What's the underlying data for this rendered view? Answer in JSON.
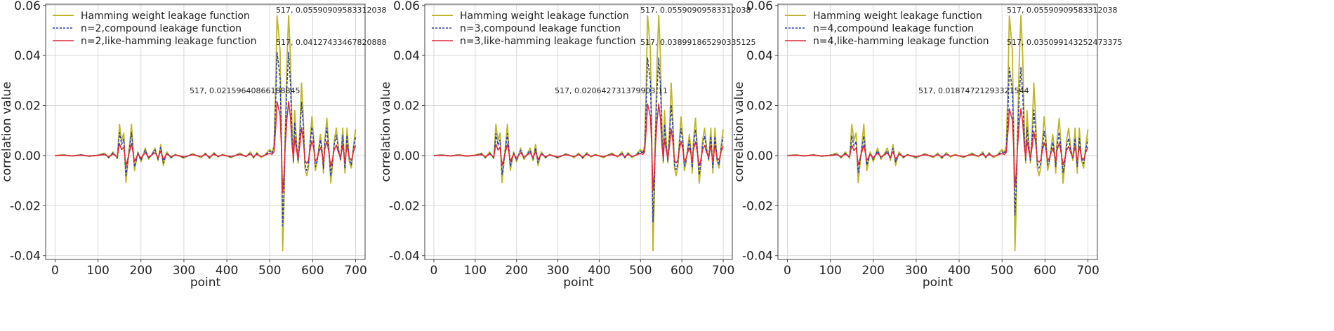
{
  "chart_data": [
    {
      "type": "line",
      "xlabel": "point",
      "ylabel": "correlation value",
      "xlim": [
        -22,
        722
      ],
      "ylim": [
        -0.0415,
        0.0605
      ],
      "xticks": [
        0,
        100,
        200,
        300,
        400,
        500,
        600,
        700
      ],
      "xtick_labels": [
        "0",
        "100",
        "200",
        "300",
        "400",
        "500",
        "600",
        "700"
      ],
      "yticks": [
        -0.04,
        -0.02,
        0.0,
        0.02,
        0.04,
        0.06
      ],
      "ytick_labels": [
        "-0.04",
        "-0.02",
        "0.00",
        "0.02",
        "0.04",
        "0.06"
      ],
      "grid": true,
      "legend_position": "top-left",
      "series": [
        {
          "name": "Hamming weight leakage function",
          "color": "#bdb62a",
          "style": "solid",
          "scale": 1.0
        },
        {
          "name": "n=2,compound leakage function",
          "color": "#2a3fa6",
          "style": "dashed",
          "scale": 0.7376
        },
        {
          "name": "n=2,like-hamming leakage function",
          "color": "#e0283c",
          "style": "solid",
          "scale": 0.3857
        }
      ],
      "annotations": [
        {
          "text": "517, 0.05590909583312038",
          "x": 517,
          "y": 0.0559
        },
        {
          "text": "517, 0.04127433467820888",
          "x": 517,
          "y": 0.0413
        },
        {
          "text": "517, 0.02159640866188845",
          "x": 517,
          "y": 0.0216
        }
      ]
    },
    {
      "type": "line",
      "xlabel": "point",
      "ylabel": "correlation value",
      "xlim": [
        -22,
        722
      ],
      "ylim": [
        -0.0415,
        0.0605
      ],
      "xticks": [
        0,
        100,
        200,
        300,
        400,
        500,
        600,
        700
      ],
      "xtick_labels": [
        "0",
        "100",
        "200",
        "300",
        "400",
        "500",
        "600",
        "700"
      ],
      "yticks": [
        -0.04,
        -0.02,
        0.0,
        0.02,
        0.04,
        0.06
      ],
      "ytick_labels": [
        "-0.04",
        "-0.02",
        "0.00",
        "0.02",
        "0.04",
        "0.06"
      ],
      "grid": true,
      "legend_position": "top-left",
      "series": [
        {
          "name": "Hamming weight leakage function",
          "color": "#bdb62a",
          "style": "solid",
          "scale": 1.0
        },
        {
          "name": "n=3,compound leakage function",
          "color": "#2a3fa6",
          "style": "dashed",
          "scale": 0.6975
        },
        {
          "name": "n=3,like-hamming leakage function",
          "color": "#e0283c",
          "style": "solid",
          "scale": 0.3691
        }
      ],
      "annotations": [
        {
          "text": "517, 0.05590909583312038",
          "x": 517,
          "y": 0.0559
        },
        {
          "text": "517, 0.038991865290335125",
          "x": 517,
          "y": 0.039
        },
        {
          "text": "517, 0.020642731379903 11",
          "x": 517,
          "y": 0.0206
        }
      ]
    },
    {
      "type": "line",
      "xlabel": "point",
      "ylabel": "correlation value",
      "xlim": [
        -22,
        722
      ],
      "ylim": [
        -0.0415,
        0.0605
      ],
      "xticks": [
        0,
        100,
        200,
        300,
        400,
        500,
        600,
        700
      ],
      "xtick_labels": [
        "0",
        "100",
        "200",
        "300",
        "400",
        "500",
        "600",
        "700"
      ],
      "yticks": [
        -0.04,
        -0.02,
        0.0,
        0.02,
        0.04,
        0.06
      ],
      "ytick_labels": [
        "-0.04",
        "-0.02",
        "0.00",
        "0.02",
        "0.04",
        "0.06"
      ],
      "grid": true,
      "legend_position": "top-left",
      "series": [
        {
          "name": "Hamming weight leakage function",
          "color": "#bdb62a",
          "style": "solid",
          "scale": 1.0
        },
        {
          "name": "n=4,compound leakage function",
          "color": "#2a3fa6",
          "style": "dashed",
          "scale": 0.6278
        },
        {
          "name": "n=4,like-hamming leakage function",
          "color": "#e0283c",
          "style": "solid",
          "scale": 0.3354
        }
      ],
      "annotations": [
        {
          "text": "517, 0.05590909583312038",
          "x": 517,
          "y": 0.0559
        },
        {
          "text": "517, 0.035099143252473375",
          "x": 517,
          "y": 0.0351
        },
        {
          "text": "517, 0.01874721293321544",
          "x": 517,
          "y": 0.0187
        }
      ]
    }
  ],
  "base_waveform": {
    "description_of": "shared sample shape of the Hamming weight trace (point, value)",
    "points": [
      [
        0,
        0.0
      ],
      [
        20,
        0.0003
      ],
      [
        40,
        -0.0002
      ],
      [
        60,
        0.0004
      ],
      [
        80,
        -0.0003
      ],
      [
        100,
        0.0002
      ],
      [
        115,
        0.001
      ],
      [
        125,
        -0.001
      ],
      [
        135,
        0.0015
      ],
      [
        145,
        -0.0012
      ],
      [
        150,
        0.0125
      ],
      [
        155,
        0.006
      ],
      [
        160,
        0.009
      ],
      [
        165,
        -0.0108
      ],
      [
        170,
        -0.002
      ],
      [
        178,
        0.0125
      ],
      [
        185,
        -0.006
      ],
      [
        193,
        0.0015
      ],
      [
        200,
        -0.0025
      ],
      [
        210,
        0.003
      ],
      [
        218,
        -0.0015
      ],
      [
        225,
        0.0005
      ],
      [
        233,
        0.003
      ],
      [
        240,
        -0.002
      ],
      [
        246,
        0.0045
      ],
      [
        252,
        -0.004
      ],
      [
        260,
        0.0015
      ],
      [
        270,
        -0.001
      ],
      [
        280,
        0.0005
      ],
      [
        300,
        -0.001
      ],
      [
        320,
        0.0008
      ],
      [
        340,
        -0.0008
      ],
      [
        350,
        0.001
      ],
      [
        360,
        -0.0012
      ],
      [
        370,
        0.0012
      ],
      [
        380,
        -0.0006
      ],
      [
        390,
        0.0005
      ],
      [
        410,
        -0.0008
      ],
      [
        430,
        0.001
      ],
      [
        445,
        -0.0005
      ],
      [
        455,
        0.0015
      ],
      [
        462,
        -0.001
      ],
      [
        470,
        0.0012
      ],
      [
        480,
        -0.0008
      ],
      [
        490,
        0.0005
      ],
      [
        500,
        0.0025
      ],
      [
        505,
        0.0012
      ],
      [
        510,
        0.004
      ],
      [
        514,
        0.03
      ],
      [
        517,
        0.0559
      ],
      [
        520,
        0.05
      ],
      [
        524,
        0.042
      ],
      [
        527,
        0.01
      ],
      [
        530,
        -0.038
      ],
      [
        533,
        -0.02
      ],
      [
        536,
        0.01
      ],
      [
        540,
        0.038
      ],
      [
        544,
        0.056
      ],
      [
        548,
        0.04
      ],
      [
        552,
        0.01
      ],
      [
        555,
        -0.003
      ],
      [
        558,
        0.018
      ],
      [
        562,
        0.006
      ],
      [
        566,
        -0.003
      ],
      [
        570,
        0.01
      ],
      [
        574,
        0.029
      ],
      [
        578,
        0.016
      ],
      [
        582,
        -0.005
      ],
      [
        586,
        -0.008
      ],
      [
        590,
        -0.005
      ],
      [
        594,
        0.006
      ],
      [
        598,
        0.0155
      ],
      [
        602,
        0.008
      ],
      [
        606,
        -0.006
      ],
      [
        610,
        -0.003
      ],
      [
        614,
        0.003
      ],
      [
        618,
        0.0085
      ],
      [
        622,
        0.002
      ],
      [
        625,
        -0.007
      ],
      [
        628,
        0.006
      ],
      [
        633,
        0.015
      ],
      [
        638,
        0.002
      ],
      [
        642,
        -0.011
      ],
      [
        646,
        -0.004
      ],
      [
        650,
        0.006
      ],
      [
        655,
        0.011
      ],
      [
        660,
        0.003
      ],
      [
        665,
        -0.002
      ],
      [
        670,
        0.011
      ],
      [
        675,
        -0.007
      ],
      [
        680,
        0.011
      ],
      [
        685,
        -0.002
      ],
      [
        690,
        -0.005
      ],
      [
        695,
        0.004
      ],
      [
        700,
        0.0105
      ]
    ]
  }
}
